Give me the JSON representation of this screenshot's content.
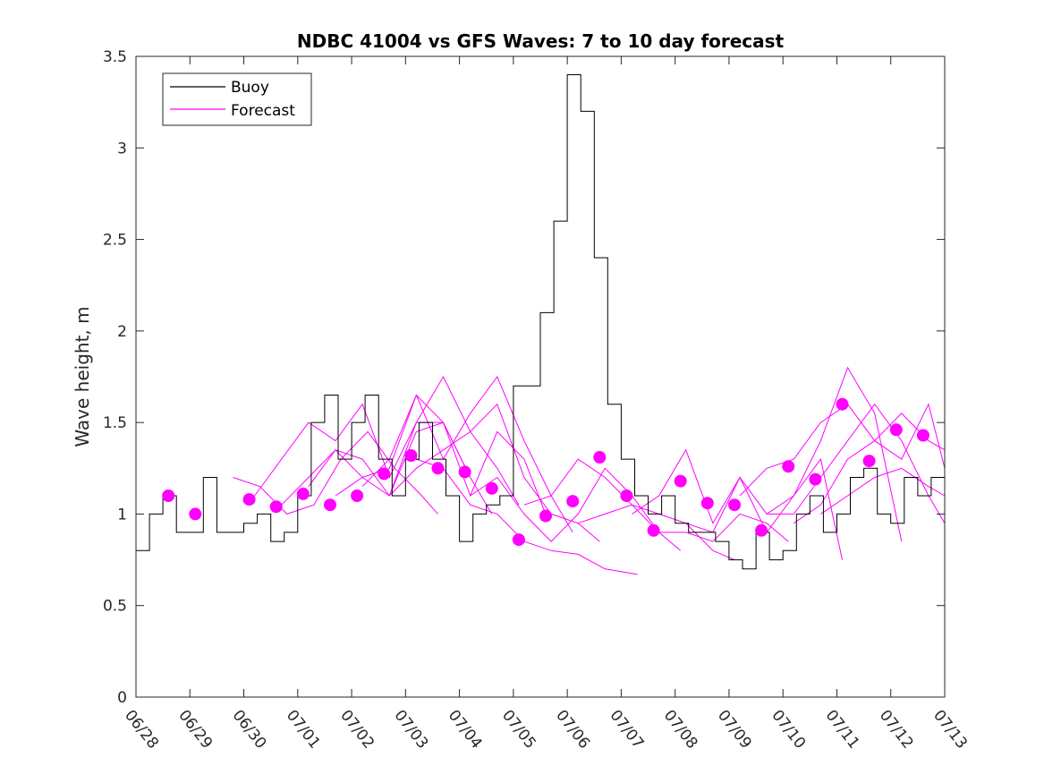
{
  "chart_data": {
    "type": "line",
    "title": "NDBC 41004 vs GFS Waves: 7 to 10 day forecast",
    "xlabel": "",
    "ylabel": "Wave height, m",
    "ylim": [
      0,
      3.5
    ],
    "yticks": [
      "0",
      "0.5",
      "1",
      "1.5",
      "2",
      "2.5",
      "3",
      "3.5"
    ],
    "xlim": [
      "06/28",
      "07/13"
    ],
    "xticks": [
      "06/28",
      "06/29",
      "06/30",
      "07/01",
      "07/02",
      "07/03",
      "07/04",
      "07/05",
      "07/06",
      "07/07",
      "07/08",
      "07/09",
      "07/10",
      "07/11",
      "07/12",
      "07/13"
    ],
    "grid": false,
    "legend_position": "top-left",
    "colors": {
      "buoy": "#000000",
      "forecast": "#ff00ff"
    },
    "buoy": {
      "name": "Buoy",
      "x": [
        0.0,
        0.25,
        0.5,
        0.75,
        1.0,
        1.25,
        1.5,
        1.75,
        2.0,
        2.25,
        2.5,
        2.75,
        3.0,
        3.25,
        3.5,
        3.75,
        4.0,
        4.25,
        4.5,
        4.75,
        5.0,
        5.25,
        5.5,
        5.75,
        6.0,
        6.25,
        6.5,
        6.75,
        7.0,
        7.25,
        7.5,
        7.75,
        8.0,
        8.25,
        8.5,
        8.75,
        9.0,
        9.25,
        9.5,
        9.75,
        10.0,
        10.25,
        10.5,
        10.75,
        11.0,
        11.25,
        11.5,
        11.75,
        12.0,
        12.25,
        12.5,
        12.75,
        13.0,
        13.25,
        13.5,
        13.75,
        14.0,
        14.25,
        14.5,
        14.75,
        15.0
      ],
      "values": [
        0.8,
        1.0,
        1.1,
        0.9,
        0.9,
        1.2,
        0.9,
        0.9,
        0.95,
        1.0,
        0.85,
        0.9,
        1.1,
        1.5,
        1.65,
        1.3,
        1.5,
        1.65,
        1.3,
        1.1,
        1.3,
        1.5,
        1.3,
        1.1,
        0.85,
        1.0,
        1.05,
        1.1,
        1.7,
        1.7,
        2.1,
        2.6,
        3.4,
        3.2,
        2.4,
        1.6,
        1.3,
        1.1,
        1.0,
        1.1,
        0.95,
        0.9,
        0.9,
        0.85,
        0.75,
        0.7,
        0.9,
        0.75,
        0.8,
        1.0,
        1.1,
        0.9,
        1.0,
        1.2,
        1.25,
        1.0,
        0.95,
        1.2,
        1.1,
        1.2,
        1.2
      ]
    },
    "forecast": {
      "name": "Forecast",
      "lines": [
        {
          "x": [
            1.8,
            2.3,
            2.8,
            3.3,
            3.8,
            4.3,
            4.8,
            5.3,
            5.6
          ],
          "values": [
            1.2,
            1.15,
            1.0,
            1.05,
            1.3,
            1.45,
            1.25,
            1.1,
            1.0
          ]
        },
        {
          "x": [
            2.2,
            2.7,
            3.2,
            3.7,
            4.2,
            4.7,
            5.2,
            5.7,
            6.2
          ],
          "values": [
            1.1,
            1.3,
            1.5,
            1.4,
            1.6,
            1.2,
            1.5,
            1.5,
            1.2
          ]
        },
        {
          "x": [
            2.7,
            3.2,
            3.7,
            4.2,
            4.7,
            5.2,
            5.7,
            6.2,
            6.6
          ],
          "values": [
            1.05,
            1.2,
            1.35,
            1.2,
            1.1,
            1.45,
            1.5,
            1.2,
            1.0
          ]
        },
        {
          "x": [
            3.2,
            3.7,
            4.2,
            4.7,
            5.2,
            5.7,
            6.2,
            6.7,
            7.1
          ],
          "values": [
            1.15,
            1.35,
            1.3,
            1.1,
            1.5,
            1.75,
            1.45,
            1.25,
            1.05
          ]
        },
        {
          "x": [
            3.7,
            4.2,
            4.7,
            5.2,
            5.7,
            6.2,
            6.7,
            7.2,
            7.6
          ],
          "values": [
            1.1,
            1.2,
            1.25,
            1.65,
            1.5,
            1.1,
            1.45,
            1.3,
            1.0
          ]
        },
        {
          "x": [
            4.2,
            4.7,
            5.2,
            5.7,
            6.2,
            6.7,
            7.2,
            7.7,
            8.1
          ],
          "values": [
            1.15,
            1.3,
            1.65,
            1.3,
            1.55,
            1.75,
            1.4,
            1.1,
            0.9
          ]
        },
        {
          "x": [
            4.7,
            5.2,
            5.7,
            6.2,
            6.7,
            7.2,
            7.7,
            8.2,
            8.6
          ],
          "values": [
            1.1,
            1.25,
            1.35,
            1.45,
            1.6,
            1.2,
            1.0,
            0.95,
            0.85
          ]
        },
        {
          "x": [
            5.2,
            5.7,
            6.2,
            6.7,
            7.2,
            7.7,
            8.2,
            8.7,
            9.3
          ],
          "values": [
            1.3,
            1.25,
            1.05,
            1.0,
            0.85,
            0.8,
            0.78,
            0.7,
            0.67
          ]
        },
        {
          "x": [
            6.2,
            6.7,
            7.2,
            7.7,
            8.2,
            8.7,
            9.2,
            9.7,
            10.1
          ],
          "values": [
            1.1,
            1.2,
            1.0,
            0.85,
            1.0,
            1.25,
            1.1,
            0.9,
            0.8
          ]
        },
        {
          "x": [
            7.2,
            7.7,
            8.2,
            8.7,
            9.2,
            9.7,
            10.2,
            10.7,
            11.1
          ],
          "values": [
            1.05,
            1.1,
            1.3,
            1.2,
            1.05,
            1.0,
            0.95,
            0.8,
            0.75
          ]
        },
        {
          "x": [
            8.2,
            8.7,
            9.2,
            9.7,
            10.2,
            10.7,
            11.2,
            11.7,
            12.1
          ],
          "values": [
            0.95,
            1.0,
            1.05,
            0.9,
            0.9,
            0.85,
            1.0,
            0.95,
            0.85
          ]
        },
        {
          "x": [
            9.2,
            9.7,
            10.2,
            10.7,
            11.2,
            11.7,
            12.2,
            12.7,
            13.1
          ],
          "values": [
            1.0,
            1.1,
            1.35,
            0.95,
            1.2,
            0.9,
            1.1,
            1.3,
            0.75
          ]
        },
        {
          "x": [
            10.2,
            10.7,
            11.2,
            11.7,
            12.2,
            12.7,
            13.2,
            13.7,
            14.2
          ],
          "values": [
            0.95,
            0.9,
            1.2,
            1.0,
            1.1,
            1.4,
            1.8,
            1.55,
            0.85
          ]
        },
        {
          "x": [
            11.2,
            11.7,
            12.2,
            12.7,
            13.2,
            13.7,
            14.2,
            14.7,
            15.0
          ],
          "values": [
            1.1,
            1.25,
            1.3,
            1.5,
            1.6,
            1.4,
            1.3,
            1.6,
            1.25
          ]
        },
        {
          "x": [
            11.7,
            12.2,
            12.7,
            13.2,
            13.7,
            14.2,
            14.7,
            15.0
          ],
          "values": [
            1.0,
            1.0,
            1.2,
            1.4,
            1.6,
            1.4,
            1.1,
            0.95
          ]
        },
        {
          "x": [
            12.2,
            12.7,
            13.2,
            13.7,
            14.2,
            14.7,
            15.0
          ],
          "values": [
            0.95,
            1.05,
            1.3,
            1.4,
            1.55,
            1.4,
            1.35
          ]
        },
        {
          "x": [
            12.7,
            13.2,
            13.7,
            14.2,
            14.7,
            15.0
          ],
          "values": [
            1.0,
            1.1,
            1.2,
            1.25,
            1.15,
            1.1
          ]
        }
      ],
      "points": {
        "x": [
          0.6,
          1.1,
          2.1,
          2.6,
          3.1,
          3.6,
          4.1,
          4.6,
          5.1,
          5.6,
          6.1,
          6.6,
          7.1,
          7.6,
          8.1,
          8.6,
          9.1,
          9.6,
          10.1,
          10.6,
          11.1,
          11.6,
          12.1,
          12.6,
          13.1,
          13.6,
          14.1,
          14.6
        ],
        "values": [
          1.1,
          1.0,
          1.08,
          1.04,
          1.11,
          1.05,
          1.1,
          1.22,
          1.32,
          1.25,
          1.23,
          1.14,
          0.86,
          0.99,
          1.07,
          1.31,
          1.1,
          0.91,
          1.18,
          1.06,
          1.05,
          0.91,
          1.26,
          1.19,
          1.6,
          1.29,
          1.46,
          1.43
        ]
      }
    }
  }
}
